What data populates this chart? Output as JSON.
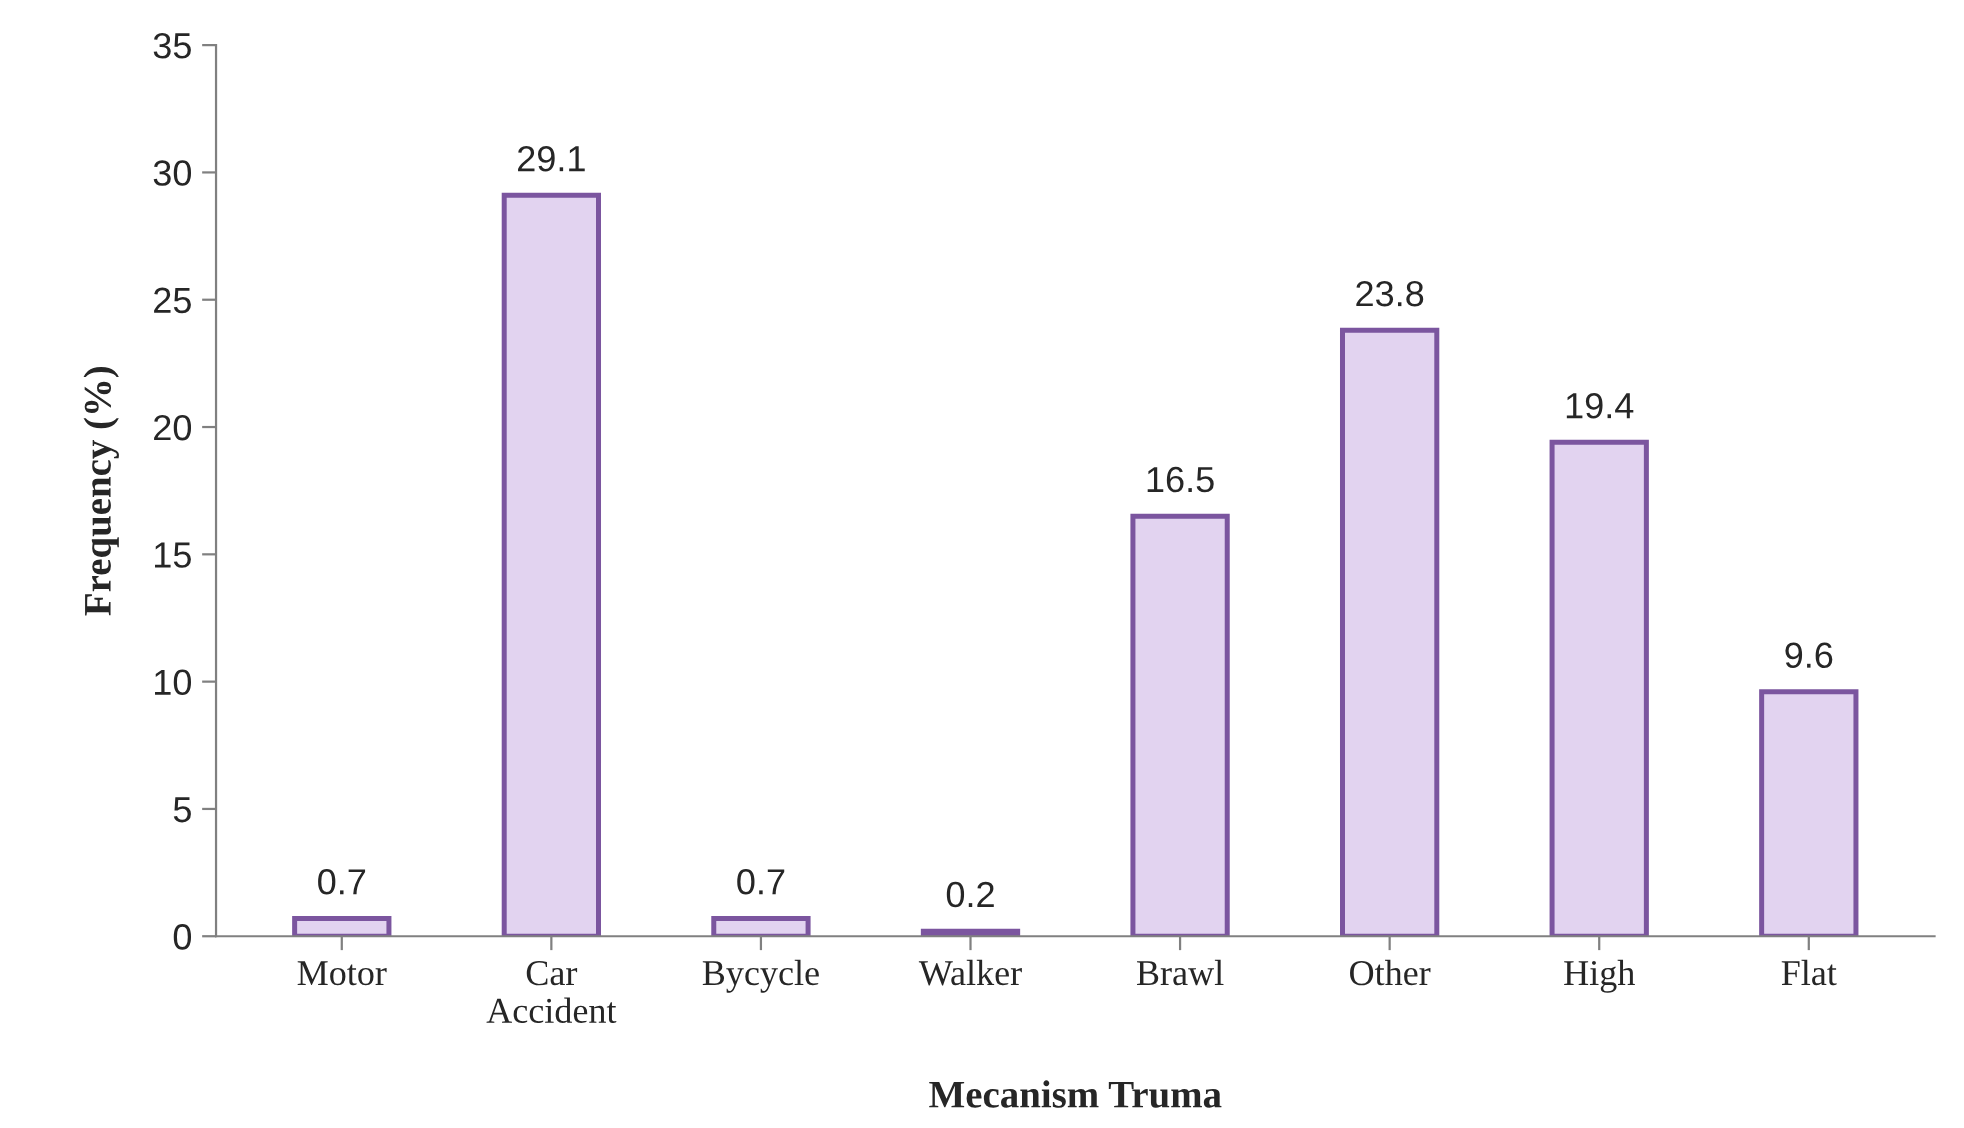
{
  "chart_data": {
    "type": "bar",
    "xlabel": "Mecanism Truma",
    "ylabel": "Frequency (%)",
    "categories": [
      "Motor",
      "Car\nAccident",
      "Bycycle",
      "Walker",
      "Brawl",
      "Other",
      "High",
      "Flat"
    ],
    "values": [
      0.7,
      29.1,
      0.7,
      0.2,
      16.5,
      23.8,
      19.4,
      9.6
    ],
    "color": "#e2d3f0",
    "ylim": [
      0,
      35
    ],
    "yticks": [
      0,
      5,
      10,
      15,
      20,
      25,
      30,
      35
    ],
    "grid": false,
    "data_labels": true
  }
}
